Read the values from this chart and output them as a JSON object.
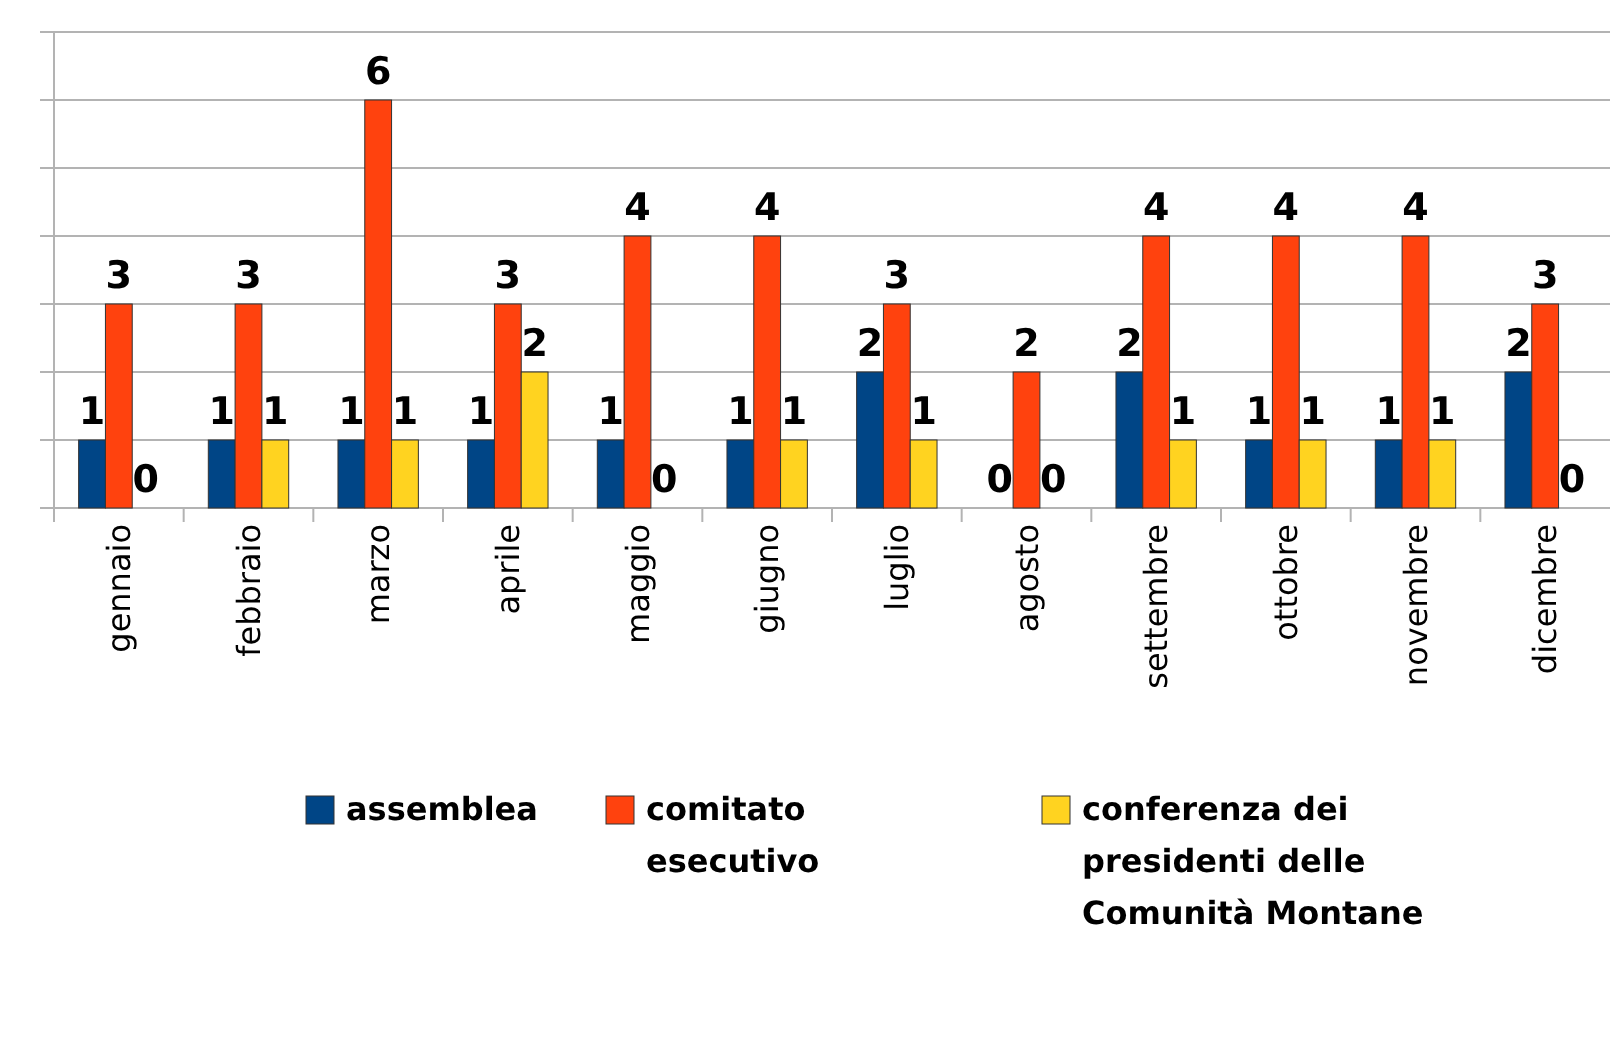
{
  "chart_data": {
    "type": "bar",
    "categories": [
      "gennaio",
      "febbraio",
      "marzo",
      "aprile",
      "maggio",
      "giugno",
      "luglio",
      "agosto",
      "settembre",
      "ottobre",
      "novembre",
      "dicembre"
    ],
    "series": [
      {
        "name": "assemblea",
        "color": "#004586",
        "values": [
          1,
          1,
          1,
          1,
          1,
          1,
          2,
          0,
          2,
          1,
          1,
          2
        ]
      },
      {
        "name": "comitato esecutivo",
        "color": "#ff420e",
        "values": [
          3,
          3,
          6,
          3,
          4,
          4,
          3,
          2,
          4,
          4,
          4,
          3
        ]
      },
      {
        "name": "conferenza dei presidenti delle Comunità Montane",
        "color": "#ffd320",
        "values": [
          0,
          1,
          1,
          2,
          0,
          1,
          1,
          0,
          1,
          1,
          1,
          0
        ]
      }
    ],
    "ylim": [
      0,
      7
    ],
    "yticks": [
      {
        "value": 0,
        "label": null
      },
      {
        "value": 1,
        "label": null
      },
      {
        "value": 2,
        "label": null
      },
      {
        "value": 3,
        "label": null
      },
      {
        "value": 4,
        "label": null
      },
      {
        "value": 5,
        "label": null
      },
      {
        "value": 6,
        "label": null
      },
      {
        "value": 7,
        "label": null
      }
    ],
    "grid": "y",
    "data_labels": true,
    "legend": "bottom"
  }
}
